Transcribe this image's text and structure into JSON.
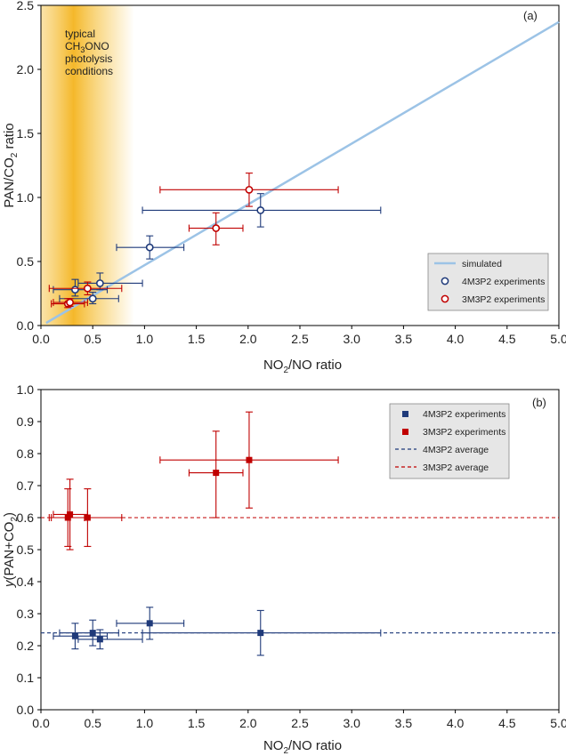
{
  "colors": {
    "blue_series": "#1f3a7a",
    "red_series": "#c00000",
    "simulated_line": "#9cc3e6",
    "shade": "#f6c343"
  },
  "chart_data": [
    {
      "panel": "(a)",
      "type": "scatter",
      "xlabel": "NO2/NO ratio",
      "xlabel_main": "NO",
      "xlabel_sub": "2",
      "xlabel_rest": "/NO ratio",
      "ylabel": "PAN/CO2 ratio",
      "ylabel_main": "PAN/CO",
      "ylabel_sub": "2",
      "ylabel_rest": " ratio",
      "xlim": [
        0,
        5
      ],
      "ylim": [
        0,
        2.5
      ],
      "xticks": [
        "0.0",
        "0.5",
        "1.0",
        "1.5",
        "2.0",
        "2.5",
        "3.0",
        "3.5",
        "4.0",
        "4.5",
        "5.0"
      ],
      "yticks": [
        "0.0",
        "0.5",
        "1.0",
        "1.5",
        "2.0",
        "2.5"
      ],
      "shaded_region": {
        "x_range": [
          0,
          0.9
        ],
        "lines": [
          "typical",
          "CH3ONO",
          "photolysis",
          "conditions"
        ],
        "ch3ono_main_1": "CH",
        "ch3ono_sub": "3",
        "ch3ono_main_2": "ONO"
      },
      "simulated": {
        "name": "simulated",
        "x": [
          0.05,
          5.0
        ],
        "y": [
          0.02,
          2.37
        ]
      },
      "series": [
        {
          "name": "4M3P2 experiments",
          "marker": "open-circle",
          "color": "#1f3a7a",
          "points": [
            {
              "x": 0.33,
              "y": 0.28,
              "xerr": [
                0.12,
                0.64
              ],
              "yerr": [
                0.23,
                0.36
              ]
            },
            {
              "x": 0.5,
              "y": 0.21,
              "xerr": [
                0.18,
                0.75
              ],
              "yerr": [
                0.17,
                0.26
              ]
            },
            {
              "x": 0.57,
              "y": 0.33,
              "xerr": [
                0.36,
                0.98
              ],
              "yerr": [
                0.28,
                0.41
              ]
            },
            {
              "x": 1.05,
              "y": 0.61,
              "xerr": [
                0.73,
                1.38
              ],
              "yerr": [
                0.52,
                0.7
              ]
            },
            {
              "x": 2.12,
              "y": 0.9,
              "xerr": [
                0.98,
                3.28
              ],
              "yerr": [
                0.77,
                1.03
              ]
            }
          ]
        },
        {
          "name": "3M3P2 experiments",
          "marker": "open-circle",
          "color": "#c00000",
          "points": [
            {
              "x": 0.26,
              "y": 0.17,
              "xerr": [
                0.1,
                0.42
              ],
              "yerr": [
                0.14,
                0.21
              ]
            },
            {
              "x": 0.28,
              "y": 0.18,
              "xerr": [
                0.12,
                0.45
              ],
              "yerr": [
                0.15,
                0.21
              ]
            },
            {
              "x": 0.45,
              "y": 0.29,
              "xerr": [
                0.08,
                0.78
              ],
              "yerr": [
                0.24,
                0.34
              ]
            },
            {
              "x": 1.69,
              "y": 0.76,
              "xerr": [
                1.43,
                1.95
              ],
              "yerr": [
                0.63,
                0.88
              ]
            },
            {
              "x": 2.01,
              "y": 1.06,
              "xerr": [
                1.15,
                2.87
              ],
              "yerr": [
                0.93,
                1.19
              ]
            }
          ]
        }
      ],
      "legend": [
        "simulated",
        "4M3P2 experiments",
        "3M3P2 experiments"
      ]
    },
    {
      "panel": "(b)",
      "type": "scatter",
      "xlabel": "NO2/NO ratio",
      "xlabel_main": "NO",
      "xlabel_sub": "2",
      "xlabel_rest": "/NO ratio",
      "ylabel": "y(PAN+CO2)",
      "ylabel_italic": "y",
      "ylabel_main": "(PAN+CO",
      "ylabel_sub": "2",
      "ylabel_rest": ")",
      "xlim": [
        0,
        5
      ],
      "ylim": [
        0,
        1.0
      ],
      "xticks": [
        "0.0",
        "0.5",
        "1.0",
        "1.5",
        "2.0",
        "2.5",
        "3.0",
        "3.5",
        "4.0",
        "4.5",
        "5.0"
      ],
      "yticks": [
        "0.0",
        "0.1",
        "0.2",
        "0.3",
        "0.4",
        "0.5",
        "0.6",
        "0.7",
        "0.8",
        "0.9",
        "1.0"
      ],
      "series": [
        {
          "name": "4M3P2 experiments",
          "marker": "filled-square",
          "color": "#1f3a7a",
          "points": [
            {
              "x": 0.33,
              "y": 0.23,
              "xerr": [
                0.12,
                0.64
              ],
              "yerr": [
                0.19,
                0.27
              ]
            },
            {
              "x": 0.5,
              "y": 0.24,
              "xerr": [
                0.18,
                0.75
              ],
              "yerr": [
                0.2,
                0.28
              ]
            },
            {
              "x": 0.57,
              "y": 0.22,
              "xerr": [
                0.36,
                0.98
              ],
              "yerr": [
                0.19,
                0.25
              ]
            },
            {
              "x": 1.05,
              "y": 0.27,
              "xerr": [
                0.73,
                1.38
              ],
              "yerr": [
                0.22,
                0.32
              ]
            },
            {
              "x": 2.12,
              "y": 0.24,
              "xerr": [
                0.98,
                3.28
              ],
              "yerr": [
                0.17,
                0.31
              ]
            }
          ]
        },
        {
          "name": "3M3P2 experiments",
          "marker": "filled-square",
          "color": "#c00000",
          "points": [
            {
              "x": 0.26,
              "y": 0.6,
              "xerr": [
                0.1,
                0.42
              ],
              "yerr": [
                0.51,
                0.69
              ]
            },
            {
              "x": 0.28,
              "y": 0.61,
              "xerr": [
                0.12,
                0.45
              ],
              "yerr": [
                0.5,
                0.72
              ]
            },
            {
              "x": 0.45,
              "y": 0.6,
              "xerr": [
                0.08,
                0.78
              ],
              "yerr": [
                0.51,
                0.69
              ]
            },
            {
              "x": 1.69,
              "y": 0.74,
              "xerr": [
                1.43,
                1.95
              ],
              "yerr": [
                0.6,
                0.87
              ]
            },
            {
              "x": 2.01,
              "y": 0.78,
              "xerr": [
                1.15,
                2.87
              ],
              "yerr": [
                0.63,
                0.93
              ]
            }
          ]
        }
      ],
      "averages": [
        {
          "name": "4M3P2 average",
          "y": 0.24,
          "color": "#1f3a7a"
        },
        {
          "name": "3M3P2 average",
          "y": 0.6,
          "color": "#c00000"
        }
      ],
      "legend": [
        "4M3P2 experiments",
        "3M3P2 experiments",
        "4M3P2 average",
        "3M3P2 average"
      ]
    }
  ]
}
